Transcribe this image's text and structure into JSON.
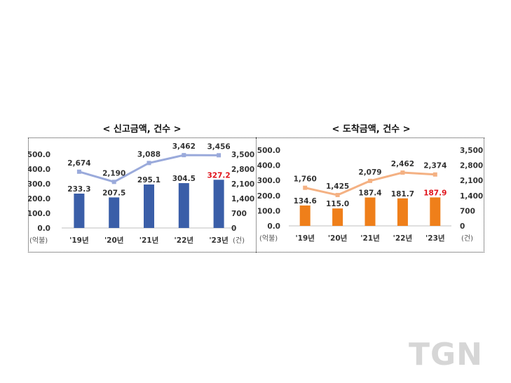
{
  "chart_data": [
    {
      "type": "bar",
      "title": "< 신고금액, 건수 >",
      "categories": [
        "'19년",
        "'20년",
        "'21년",
        "'22년",
        "'23년"
      ],
      "series": [
        {
          "values": [
            233.3,
            207.5,
            295.1,
            304.5,
            327.2
          ],
          "color": "#3a5ea8"
        },
        {
          "values": [
            2674,
            2190,
            3088,
            3462,
            3456
          ],
          "color": "#9aaadb",
          "axis": "right",
          "type": "line"
        }
      ],
      "bar_labels": [
        "233.3",
        "207.5",
        "295.1",
        "304.5",
        "327.2"
      ],
      "line_labels": [
        "2,674",
        "2,190",
        "3,088",
        "3,462",
        "3,456"
      ],
      "highlight_color": "#e0141c",
      "left_unit": "(억불)",
      "right_unit": "(건)",
      "left_ticks": [
        "0.0",
        "100.0",
        "200.0",
        "300.0",
        "400.0",
        "500.0"
      ],
      "right_ticks": [
        "0",
        "700",
        "1,400",
        "2,100",
        "2,800",
        "3,500"
      ],
      "ylim": [
        0,
        500
      ],
      "y2lim": [
        0,
        3500
      ]
    },
    {
      "type": "bar",
      "title": "< 도착금액, 건수 >",
      "categories": [
        "'19년",
        "'20년",
        "'21년",
        "'22년",
        "'23년"
      ],
      "series": [
        {
          "values": [
            134.6,
            115.0,
            187.4,
            181.7,
            187.9
          ],
          "color": "#ef7f1a"
        },
        {
          "values": [
            1760,
            1425,
            2079,
            2462,
            2374
          ],
          "color": "#f4b183",
          "axis": "right",
          "type": "line"
        }
      ],
      "bar_labels": [
        "134.6",
        "115.0",
        "187.4",
        "181.7",
        "187.9"
      ],
      "line_labels": [
        "1,760",
        "1,425",
        "2,079",
        "2,462",
        "2,374"
      ],
      "highlight_color": "#e0141c",
      "left_unit": "(억불)",
      "right_unit": "(건)",
      "left_ticks": [
        "0.0",
        "100.0",
        "200.0",
        "300.0",
        "400.0",
        "500.0"
      ],
      "right_ticks": [
        "0",
        "700",
        "1,400",
        "2,100",
        "2,800",
        "3,500"
      ],
      "ylim": [
        0,
        500
      ],
      "y2lim": [
        0,
        3500
      ]
    }
  ],
  "watermark": "TGN"
}
